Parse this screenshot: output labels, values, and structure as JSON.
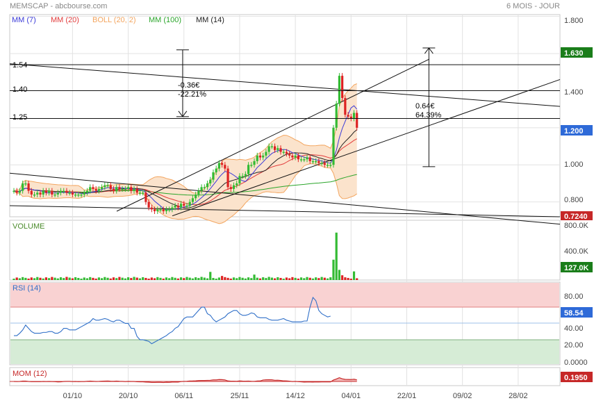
{
  "header": {
    "source": "MEMSCAP - abcbourse.com",
    "period": "6 MOIS - JOUR",
    "legend": [
      {
        "label": "MM (7)",
        "color": "#3a3ad8"
      },
      {
        "label": "MM (20)",
        "color": "#e23a3a"
      },
      {
        "label": "BOLL (20, 2)",
        "color": "#f3a55f"
      },
      {
        "label": "MM (100)",
        "color": "#2aa52a"
      },
      {
        "label": "MM (14)",
        "color": "#222222"
      }
    ]
  },
  "colors": {
    "up": "#33bb33",
    "down": "#dd2222",
    "grid": "#e2e2e2",
    "boll_fill": "#fbe3cc",
    "rsi_line": "#2f6fc8"
  },
  "chart_data": [
    {
      "type": "candlestick",
      "name": "price",
      "y_ticks": [
        "1.800",
        "1.400",
        "1.000",
        "0.800"
      ],
      "ylim": [
        0.72,
        1.81
      ],
      "badges": [
        {
          "text": "1.630",
          "value": 1.63,
          "color": "#1a7d1a"
        },
        {
          "text": "1.200",
          "value": 1.2,
          "color": "#2e6ad8"
        },
        {
          "text": "0.7240",
          "value": 0.724,
          "color": "#c62828"
        }
      ],
      "levels": [
        {
          "text": "1.54",
          "value": 1.54
        },
        {
          "text": "1.40",
          "value": 1.4
        },
        {
          "text": "1.25",
          "value": 1.25
        }
      ],
      "annotations": [
        {
          "lines": [
            "-0.36€",
            "-22.21%"
          ],
          "x_index": 54,
          "y_from": 1.62,
          "y_to": 1.26
        },
        {
          "lines": [
            "0.64€",
            "64.39%"
          ],
          "x_index": 138,
          "y_from": 1.63,
          "y_to": 0.99
        }
      ],
      "x_ticks": [
        {
          "label": "01/10",
          "index": 20
        },
        {
          "label": "20/10",
          "index": 39
        },
        {
          "label": "06/11",
          "index": 58
        },
        {
          "label": "25/11",
          "index": 77
        },
        {
          "label": "14/12",
          "index": 96
        },
        {
          "label": "04/01",
          "index": 115
        },
        {
          "label": "22/01",
          "index": 134
        },
        {
          "label": "09/02",
          "index": 153
        },
        {
          "label": "28/02",
          "index": 172
        }
      ],
      "close": [
        0.86,
        0.85,
        0.86,
        0.9,
        0.9,
        0.86,
        0.84,
        0.84,
        0.85,
        0.84,
        0.86,
        0.85,
        0.86,
        0.84,
        0.84,
        0.85,
        0.86,
        0.86,
        0.85,
        0.85,
        0.84,
        0.84,
        0.84,
        0.84,
        0.85,
        0.86,
        0.88,
        0.87,
        0.86,
        0.87,
        0.88,
        0.89,
        0.89,
        0.87,
        0.86,
        0.88,
        0.87,
        0.87,
        0.87,
        0.88,
        0.86,
        0.87,
        0.85,
        0.85,
        0.85,
        0.8,
        0.77,
        0.76,
        0.75,
        0.76,
        0.76,
        0.75,
        0.76,
        0.76,
        0.77,
        0.78,
        0.77,
        0.79,
        0.78,
        0.78,
        0.8,
        0.82,
        0.84,
        0.86,
        0.88,
        0.88,
        0.9,
        0.92,
        0.96,
        0.98,
        1.01,
        1.0,
        0.98,
        0.88,
        0.87,
        0.89,
        0.9,
        0.94,
        0.94,
        0.95,
        1.0,
        1.0,
        1.02,
        1.05,
        1.04,
        1.05,
        1.07,
        1.1,
        1.1,
        1.08,
        1.09,
        1.07,
        1.07,
        1.06,
        1.05,
        1.04,
        1.05,
        1.03,
        1.03,
        1.03,
        1.04,
        1.02,
        1.02,
        1.02,
        1.01,
        1.01,
        1.0,
        1.0,
        1.0,
        1.2,
        1.33,
        1.48,
        1.36,
        1.27,
        1.26,
        1.25,
        1.28,
        1.2
      ],
      "volume": {
        "ylim": [
          0,
          800000
        ],
        "y_ticks": [
          "800.0K",
          "400.0K"
        ],
        "badge": "127.0K",
        "badge_color": "#1a7d1a",
        "label": "VOLUME"
      }
    },
    {
      "type": "line",
      "name": "rsi",
      "label": "RSI (14)",
      "y_ticks": [
        "80.00",
        "40.00",
        "20.00",
        "0.0000"
      ],
      "ylim": [
        0,
        100
      ],
      "badge": "58.54",
      "badge_color": "#2e6ad8",
      "zones": {
        "overbought": 70,
        "oversold": 30,
        "mid": 50
      },
      "values": [
        35,
        35,
        38,
        42,
        48,
        44,
        40,
        38,
        38,
        38,
        39,
        39,
        40,
        40,
        38,
        38,
        40,
        44,
        44,
        42,
        42,
        42,
        44,
        46,
        48,
        50,
        52,
        56,
        54,
        54,
        55,
        56,
        55,
        53,
        52,
        54,
        54,
        52,
        50,
        50,
        44,
        44,
        34,
        30,
        30,
        29,
        28,
        25,
        27,
        29,
        31,
        33,
        35,
        38,
        40,
        44,
        46,
        51,
        56,
        58,
        58,
        58,
        62,
        66,
        70,
        70,
        62,
        60,
        55,
        52,
        54,
        56,
        58,
        62,
        64,
        66,
        66,
        62,
        60,
        60,
        61,
        63,
        62,
        58,
        57,
        57,
        57,
        55,
        54,
        54,
        54,
        55,
        56,
        54,
        53,
        52,
        52,
        52,
        52,
        53,
        53,
        70,
        82,
        78,
        66,
        62,
        60,
        58,
        59
      ],
      "series": [
        {
          "values": []
        }
      ]
    },
    {
      "type": "bar",
      "name": "momentum",
      "label": "MOM (12)",
      "badge": "0.1950",
      "badge_color": "#c62828"
    }
  ]
}
